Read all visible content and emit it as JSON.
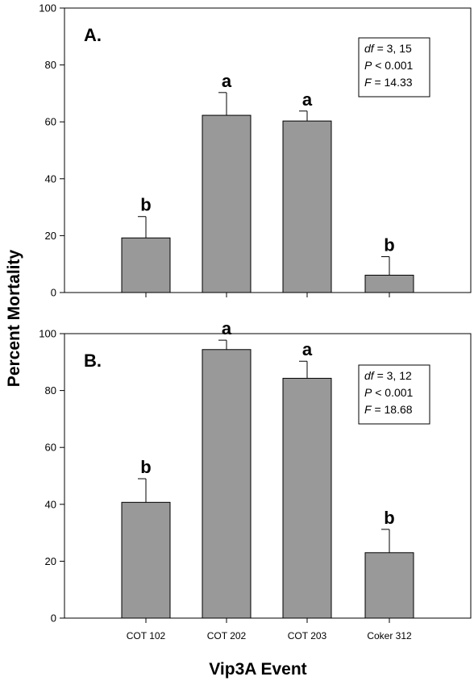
{
  "chart_data": [
    {
      "type": "bar",
      "panel_label": "A.",
      "categories": [
        "COT 102",
        "COT 202",
        "COT 203",
        "Coker 312"
      ],
      "values": [
        19.2,
        62.3,
        60.3,
        6.1
      ],
      "errors": [
        7.5,
        8.0,
        3.5,
        6.5
      ],
      "significance_letters": [
        "b",
        "a",
        "a",
        "b"
      ],
      "ylim": [
        0,
        100
      ],
      "yticks": [
        0,
        20,
        40,
        60,
        80,
        100
      ],
      "stats": [
        {
          "label": "df",
          "value": "3, 15"
        },
        {
          "label": "P",
          "value": "< 0.001"
        },
        {
          "label": "F",
          "value": "14.33"
        }
      ],
      "bar_color": "#999999",
      "grid": false
    },
    {
      "type": "bar",
      "panel_label": "B.",
      "categories": [
        "COT 102",
        "COT 202",
        "COT 203",
        "Coker 312"
      ],
      "values": [
        40.7,
        94.4,
        84.3,
        23.0
      ],
      "errors": [
        8.3,
        3.3,
        6.0,
        8.2
      ],
      "significance_letters": [
        "b",
        "a",
        "a",
        "b"
      ],
      "ylim": [
        0,
        100
      ],
      "yticks": [
        0,
        20,
        40,
        60,
        80,
        100
      ],
      "stats": [
        {
          "label": "df",
          "value": "3, 12"
        },
        {
          "label": "P",
          "value": "< 0.001"
        },
        {
          "label": "F",
          "value": "18.68"
        }
      ],
      "bar_color": "#999999",
      "grid": false
    }
  ],
  "ylabel": "Percent Mortality",
  "xlabel": "Vip3A Event"
}
